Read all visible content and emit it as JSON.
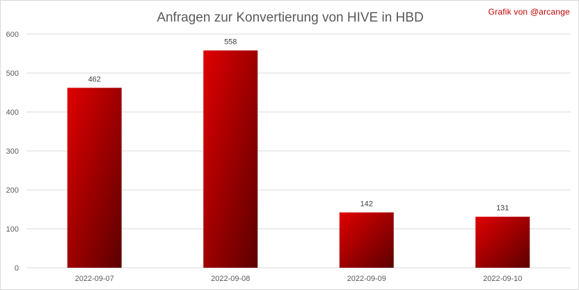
{
  "chart_data": {
    "type": "bar",
    "title": "Anfragen zur Konvertierung von HIVE in HBD",
    "credit": "Grafik von @arcange",
    "categories": [
      "2022-09-07",
      "2022-09-08",
      "2022-09-09",
      "2022-09-10"
    ],
    "values": [
      462,
      558,
      142,
      131
    ],
    "data_labels": [
      "462",
      "558",
      "142",
      "131"
    ],
    "yticks": [
      "0",
      "100",
      "200",
      "300",
      "400",
      "500",
      "600"
    ],
    "ylim": [
      0,
      600
    ],
    "xlabel": "",
    "ylabel": "",
    "grid": true,
    "colors": {
      "bar_light": "#e00000",
      "bar_dark": "#5c0000",
      "grid": "#d9d9d9"
    }
  }
}
